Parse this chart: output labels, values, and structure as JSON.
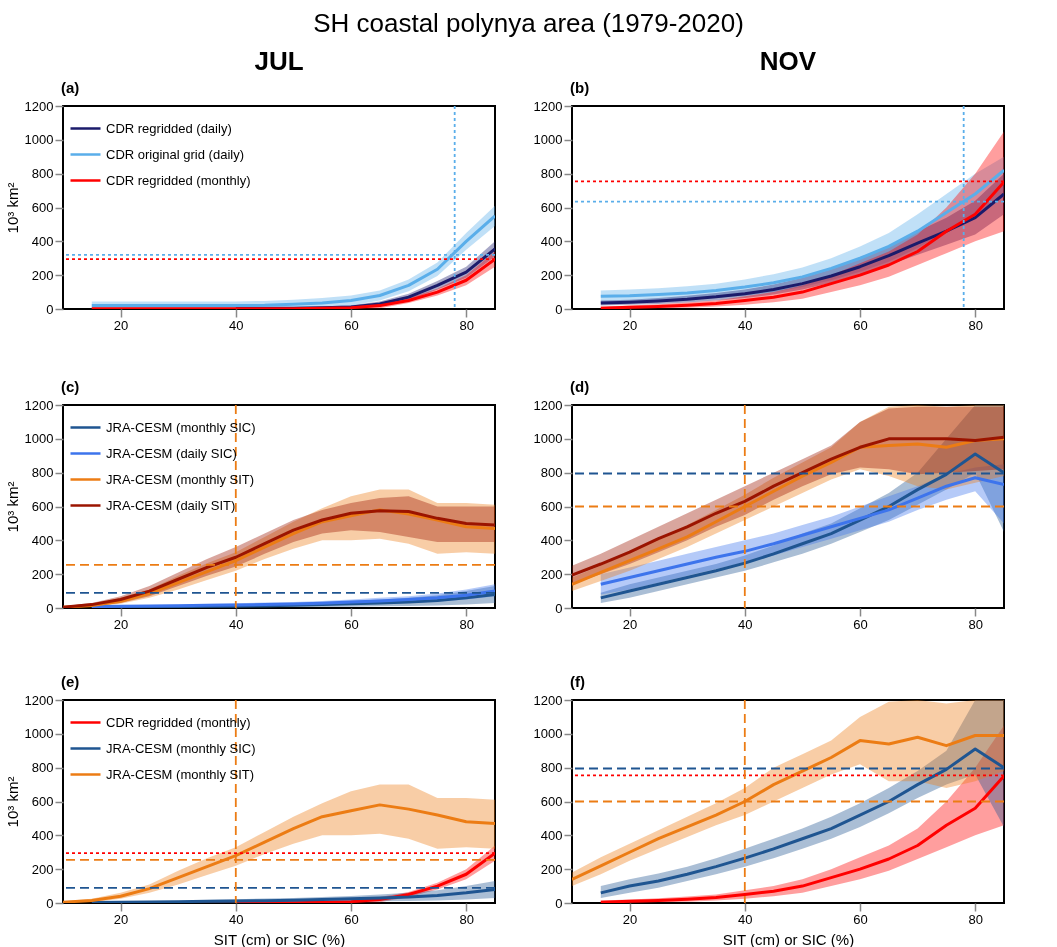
{
  "chart_data": [
    {
      "type": "line",
      "title": "SH coastal polynya area (1979-2020)",
      "subtitle": "JUL",
      "annotations": [
        "(a)"
      ],
      "ylabel": "10³ km²",
      "xlim": [
        10,
        85
      ],
      "xticks": [
        20,
        40,
        60,
        80
      ],
      "ylim": [
        0,
        1200
      ],
      "yticks": [
        0,
        200,
        400,
        600,
        800,
        1000,
        1200
      ],
      "legend": "top left",
      "series": [
        {
          "name": "CDR regridded (daily)",
          "color": "#1b1b6b",
          "x": [
            15,
            20,
            25,
            30,
            35,
            40,
            45,
            50,
            55,
            60,
            65,
            70,
            75,
            80,
            85
          ],
          "values": [
            null,
            null,
            null,
            null,
            null,
            5,
            5,
            5,
            8,
            12,
            30,
            70,
            140,
            218,
            355
          ],
          "lower": [
            0,
            0,
            0,
            0,
            0,
            0,
            0,
            0,
            0,
            0,
            15,
            50,
            115,
            185,
            310
          ],
          "upper": [
            10,
            10,
            10,
            10,
            10,
            10,
            10,
            12,
            15,
            22,
            45,
            90,
            165,
            250,
            400
          ]
        },
        {
          "name": "CDR original grid (daily)",
          "color": "#5aaeea",
          "x": [
            15,
            20,
            25,
            30,
            35,
            40,
            45,
            50,
            55,
            60,
            65,
            70,
            75,
            80,
            85
          ],
          "values": [
            20,
            20,
            20,
            20,
            20,
            20,
            22,
            28,
            35,
            50,
            80,
            140,
            235,
            400,
            550
          ],
          "lower": [
            0,
            0,
            0,
            0,
            0,
            0,
            0,
            0,
            5,
            20,
            50,
            105,
            195,
            350,
            490
          ],
          "upper": [
            45,
            45,
            45,
            45,
            45,
            45,
            48,
            55,
            65,
            80,
            110,
            175,
            275,
            450,
            610
          ]
        },
        {
          "name": "CDR regridded (monthly)",
          "color": "#ff0000",
          "x": [
            15,
            20,
            25,
            30,
            35,
            40,
            45,
            50,
            55,
            60,
            65,
            70,
            75,
            80,
            85
          ],
          "values": [
            2,
            2,
            2,
            2,
            2,
            2,
            2,
            2,
            4,
            8,
            20,
            50,
            100,
            170,
            295
          ],
          "lower": [
            0,
            0,
            0,
            0,
            0,
            0,
            0,
            0,
            0,
            0,
            5,
            35,
            80,
            140,
            250
          ],
          "upper": [
            5,
            5,
            5,
            5,
            5,
            5,
            5,
            6,
            10,
            15,
            35,
            65,
            120,
            200,
            340
          ]
        }
      ],
      "ref_lines": [
        {
          "axis": "y",
          "value": 320,
          "color": "#5aaeea",
          "line_style": "dotted"
        },
        {
          "axis": "y",
          "value": 295,
          "color": "#ff0000",
          "line_style": "dotted"
        },
        {
          "axis": "x",
          "value": 78,
          "color": "#5aaeea",
          "line_style": "dotted"
        }
      ]
    },
    {
      "type": "line",
      "subtitle": "NOV",
      "annotations": [
        "(b)"
      ],
      "xlim": [
        10,
        85
      ],
      "xticks": [
        20,
        40,
        60,
        80
      ],
      "ylim": [
        0,
        1200
      ],
      "yticks": [
        0,
        200,
        400,
        600,
        800,
        1000,
        1200
      ],
      "series": [
        {
          "color": "#5aaeea",
          "x": [
            15,
            20,
            25,
            30,
            35,
            40,
            45,
            50,
            55,
            60,
            65,
            70,
            75,
            80,
            85
          ],
          "values": [
            75,
            78,
            85,
            95,
            110,
            130,
            155,
            190,
            240,
            300,
            370,
            460,
            570,
            680,
            820
          ],
          "lower": [
            40,
            42,
            48,
            55,
            65,
            80,
            100,
            130,
            170,
            220,
            280,
            360,
            460,
            560,
            660
          ],
          "upper": [
            110,
            115,
            122,
            135,
            150,
            175,
            205,
            245,
            300,
            370,
            450,
            560,
            680,
            800,
            900
          ]
        },
        {
          "color": "#1b1b6b",
          "x": [
            15,
            20,
            25,
            30,
            35,
            40,
            45,
            50,
            55,
            60,
            65,
            70,
            75,
            80,
            85
          ],
          "values": [
            35,
            40,
            48,
            58,
            72,
            90,
            115,
            150,
            195,
            250,
            315,
            390,
            460,
            540,
            680
          ],
          "lower": [
            20,
            25,
            30,
            38,
            50,
            65,
            85,
            115,
            155,
            205,
            260,
            320,
            380,
            440,
            560
          ],
          "upper": [
            50,
            55,
            65,
            78,
            95,
            115,
            145,
            185,
            235,
            295,
            370,
            460,
            540,
            640,
            800
          ]
        },
        {
          "color": "#ff0000",
          "x": [
            15,
            20,
            25,
            30,
            35,
            40,
            45,
            50,
            55,
            60,
            65,
            70,
            75,
            80,
            85
          ],
          "values": [
            5,
            10,
            15,
            22,
            32,
            50,
            70,
            100,
            150,
            200,
            260,
            340,
            460,
            560,
            750
          ],
          "lower": [
            0,
            0,
            5,
            8,
            15,
            25,
            40,
            60,
            100,
            140,
            190,
            260,
            330,
            400,
            460
          ],
          "upper": [
            15,
            20,
            28,
            38,
            50,
            75,
            100,
            140,
            200,
            270,
            340,
            440,
            600,
            800,
            1050
          ]
        }
      ],
      "ref_lines": [
        {
          "axis": "y",
          "value": 755,
          "color": "#ff0000",
          "line_style": "dotted"
        },
        {
          "axis": "y",
          "value": 635,
          "color": "#5aaeea",
          "line_style": "dotted"
        },
        {
          "axis": "x",
          "value": 78,
          "color": "#5aaeea",
          "line_style": "dotted"
        }
      ]
    },
    {
      "type": "line",
      "annotations": [
        "(c)"
      ],
      "ylabel": "10³ km²",
      "xlim": [
        10,
        85
      ],
      "xticks": [
        20,
        40,
        60,
        80
      ],
      "ylim": [
        0,
        1200
      ],
      "yticks": [
        0,
        200,
        400,
        600,
        800,
        1000,
        1200
      ],
      "legend": "top left",
      "series": [
        {
          "name": "JRA-CESM (monthly SIC)",
          "color": "#1f5591",
          "x": [
            15,
            20,
            25,
            30,
            35,
            40,
            45,
            50,
            55,
            60,
            65,
            70,
            75,
            80,
            85
          ],
          "values": [
            3,
            5,
            6,
            8,
            10,
            12,
            14,
            16,
            20,
            25,
            30,
            35,
            45,
            60,
            80
          ],
          "lower": [
            0,
            0,
            0,
            0,
            0,
            0,
            2,
            4,
            6,
            8,
            10,
            12,
            15,
            20,
            30
          ],
          "upper": [
            8,
            10,
            12,
            14,
            18,
            22,
            26,
            30,
            36,
            42,
            50,
            60,
            75,
            100,
            130
          ]
        },
        {
          "name": "JRA-CESM (daily SIC)",
          "color": "#3d74ec",
          "x": [
            15,
            20,
            25,
            30,
            35,
            40,
            45,
            50,
            55,
            60,
            65,
            70,
            75,
            80,
            85
          ],
          "values": [
            8,
            10,
            12,
            14,
            16,
            18,
            20,
            24,
            28,
            35,
            42,
            50,
            60,
            75,
            100
          ],
          "lower": [
            3,
            4,
            5,
            6,
            7,
            8,
            10,
            12,
            15,
            20,
            25,
            30,
            38,
            50,
            70
          ],
          "upper": [
            14,
            16,
            18,
            20,
            24,
            28,
            32,
            36,
            42,
            50,
            60,
            70,
            85,
            110,
            140
          ]
        },
        {
          "name": "JRA-CESM (monthly SIT)",
          "color": "#ec7c14",
          "x": [
            10,
            15,
            20,
            25,
            30,
            35,
            40,
            45,
            50,
            55,
            60,
            65,
            70,
            75,
            80,
            85
          ],
          "values": [
            5,
            15,
            40,
            85,
            150,
            215,
            280,
            360,
            440,
            510,
            545,
            580,
            555,
            520,
            480,
            470
          ],
          "lower": [
            0,
            5,
            25,
            60,
            110,
            165,
            220,
            290,
            350,
            400,
            400,
            410,
            380,
            320,
            330,
            320
          ],
          "upper": [
            10,
            25,
            60,
            110,
            190,
            265,
            330,
            420,
            510,
            590,
            660,
            700,
            700,
            620,
            620,
            610
          ]
        },
        {
          "name": "JRA-CESM (daily SIT)",
          "color": "#9b1400",
          "x": [
            10,
            15,
            20,
            25,
            30,
            35,
            40,
            45,
            50,
            55,
            60,
            65,
            70,
            75,
            80,
            85
          ],
          "values": [
            5,
            20,
            50,
            100,
            170,
            240,
            300,
            380,
            460,
            520,
            560,
            575,
            570,
            530,
            500,
            490
          ],
          "lower": [
            0,
            10,
            30,
            70,
            130,
            190,
            245,
            320,
            390,
            440,
            460,
            450,
            420,
            390,
            390,
            390
          ],
          "upper": [
            10,
            30,
            70,
            130,
            210,
            290,
            360,
            440,
            520,
            580,
            620,
            650,
            660,
            600,
            600,
            600
          ]
        }
      ],
      "ref_lines": [
        {
          "axis": "y",
          "value": 255,
          "color": "#ec7c14",
          "line_style": "dashed"
        },
        {
          "axis": "y",
          "value": 90,
          "color": "#1f5591",
          "line_style": "dashed"
        },
        {
          "axis": "x",
          "value": 40,
          "color": "#ec7c14",
          "line_style": "dashed"
        }
      ]
    },
    {
      "type": "line",
      "annotations": [
        "(d)"
      ],
      "xlim": [
        10,
        85
      ],
      "xticks": [
        20,
        40,
        60,
        80
      ],
      "ylim": [
        0,
        1200
      ],
      "yticks": [
        0,
        200,
        400,
        600,
        800,
        1000,
        1200
      ],
      "series": [
        {
          "color": "#1f5591",
          "x": [
            15,
            20,
            25,
            30,
            35,
            40,
            45,
            50,
            55,
            60,
            65,
            70,
            75,
            80,
            85
          ],
          "values": [
            60,
            100,
            140,
            180,
            220,
            265,
            320,
            380,
            440,
            520,
            600,
            700,
            790,
            910,
            800
          ],
          "lower": [
            30,
            60,
            100,
            140,
            180,
            220,
            270,
            320,
            380,
            450,
            520,
            610,
            700,
            800,
            450
          ],
          "upper": [
            90,
            140,
            180,
            220,
            260,
            310,
            370,
            440,
            500,
            590,
            680,
            800,
            1000,
            1200,
            1200
          ]
        },
        {
          "color": "#3d74ec",
          "x": [
            15,
            20,
            25,
            30,
            35,
            40,
            45,
            50,
            55,
            60,
            65,
            70,
            75,
            80,
            85
          ],
          "values": [
            140,
            180,
            220,
            260,
            300,
            335,
            380,
            430,
            480,
            530,
            580,
            650,
            720,
            770,
            730
          ],
          "lower": [
            80,
            110,
            150,
            190,
            230,
            270,
            310,
            360,
            410,
            460,
            510,
            580,
            640,
            690,
            500
          ],
          "upper": [
            200,
            240,
            280,
            320,
            360,
            400,
            440,
            490,
            540,
            600,
            660,
            720,
            790,
            830,
            850
          ]
        },
        {
          "color": "#ec7c14",
          "x": [
            10,
            15,
            20,
            25,
            30,
            35,
            40,
            45,
            50,
            55,
            60,
            65,
            70,
            75,
            80,
            85
          ],
          "values": [
            140,
            210,
            280,
            350,
            420,
            510,
            600,
            690,
            780,
            860,
            950,
            960,
            970,
            950,
            990,
            1000
          ],
          "lower": [
            100,
            160,
            220,
            290,
            360,
            440,
            520,
            600,
            680,
            760,
            820,
            780,
            720,
            700,
            740,
            780
          ],
          "upper": [
            180,
            250,
            330,
            410,
            490,
            580,
            670,
            770,
            860,
            950,
            1100,
            1190,
            1200,
            1190,
            1200,
            1200
          ]
        },
        {
          "color": "#9b1400",
          "x": [
            10,
            15,
            20,
            25,
            30,
            35,
            40,
            45,
            50,
            55,
            60,
            65,
            70,
            75,
            80,
            85
          ],
          "values": [
            195,
            260,
            330,
            410,
            480,
            560,
            630,
            720,
            800,
            880,
            950,
            1000,
            1000,
            1000,
            990,
            1010
          ],
          "lower": [
            140,
            200,
            260,
            330,
            400,
            480,
            550,
            640,
            720,
            790,
            830,
            820,
            790,
            800,
            810,
            820
          ],
          "upper": [
            250,
            320,
            400,
            480,
            560,
            640,
            720,
            800,
            880,
            960,
            1100,
            1180,
            1190,
            1190,
            1190,
            1190
          ]
        }
      ],
      "ref_lines": [
        {
          "axis": "y",
          "value": 795,
          "color": "#1f5591",
          "line_style": "dashed"
        },
        {
          "axis": "y",
          "value": 600,
          "color": "#ec7c14",
          "line_style": "dashed"
        },
        {
          "axis": "x",
          "value": 40,
          "color": "#ec7c14",
          "line_style": "dashed"
        }
      ]
    },
    {
      "type": "line",
      "annotations": [
        "(e)"
      ],
      "xlabel": "SIT (cm) or SIC (%)",
      "ylabel": "10³ km²",
      "xlim": [
        10,
        85
      ],
      "xticks": [
        20,
        40,
        60,
        80
      ],
      "ylim": [
        0,
        1200
      ],
      "yticks": [
        0,
        200,
        400,
        600,
        800,
        1000,
        1200
      ],
      "legend": "top left",
      "series": [
        {
          "name": "CDR regridded (monthly)",
          "color": "#ff0000",
          "x": [
            15,
            20,
            25,
            30,
            35,
            40,
            45,
            50,
            55,
            60,
            65,
            70,
            75,
            80,
            85
          ],
          "values": [
            null,
            null,
            null,
            null,
            null,
            2,
            2,
            2,
            4,
            8,
            20,
            50,
            100,
            170,
            295
          ],
          "lower": [
            0,
            0,
            0,
            0,
            0,
            0,
            0,
            0,
            0,
            0,
            5,
            35,
            80,
            140,
            250
          ],
          "upper": [
            5,
            5,
            5,
            5,
            5,
            5,
            5,
            6,
            10,
            15,
            35,
            65,
            120,
            200,
            340
          ]
        },
        {
          "name": "JRA-CESM (monthly SIC)",
          "color": "#1f5591",
          "x": [
            15,
            20,
            25,
            30,
            35,
            40,
            45,
            50,
            55,
            60,
            65,
            70,
            75,
            80,
            85
          ],
          "values": [
            3,
            5,
            6,
            8,
            10,
            12,
            14,
            16,
            20,
            25,
            30,
            35,
            45,
            60,
            80
          ],
          "lower": [
            0,
            0,
            0,
            0,
            0,
            0,
            2,
            4,
            6,
            8,
            10,
            12,
            15,
            20,
            30
          ],
          "upper": [
            8,
            10,
            12,
            14,
            18,
            22,
            26,
            30,
            36,
            42,
            50,
            60,
            75,
            100,
            130
          ]
        },
        {
          "name": "JRA-CESM (monthly SIT)",
          "color": "#ec7c14",
          "x": [
            10,
            15,
            20,
            25,
            30,
            35,
            40,
            45,
            50,
            55,
            60,
            65,
            70,
            75,
            80,
            85
          ],
          "values": [
            5,
            15,
            40,
            85,
            150,
            215,
            280,
            360,
            440,
            510,
            545,
            580,
            555,
            520,
            480,
            470
          ],
          "lower": [
            0,
            5,
            25,
            60,
            110,
            165,
            220,
            290,
            350,
            400,
            400,
            410,
            380,
            320,
            330,
            320
          ],
          "upper": [
            10,
            25,
            60,
            110,
            190,
            265,
            330,
            420,
            510,
            590,
            660,
            700,
            700,
            620,
            620,
            610
          ]
        }
      ],
      "ref_lines": [
        {
          "axis": "y",
          "value": 295,
          "color": "#ff0000",
          "line_style": "dotted"
        },
        {
          "axis": "y",
          "value": 255,
          "color": "#ec7c14",
          "line_style": "dashed"
        },
        {
          "axis": "y",
          "value": 90,
          "color": "#1f5591",
          "line_style": "dashed"
        },
        {
          "axis": "x",
          "value": 40,
          "color": "#ec7c14",
          "line_style": "dashed"
        }
      ]
    },
    {
      "type": "line",
      "annotations": [
        "(f)"
      ],
      "xlabel": "SIT (cm) or SIC (%)",
      "xlim": [
        10,
        85
      ],
      "xticks": [
        20,
        40,
        60,
        80
      ],
      "ylim": [
        0,
        1200
      ],
      "yticks": [
        0,
        200,
        400,
        600,
        800,
        1000,
        1200
      ],
      "series": [
        {
          "color": "#ff0000",
          "x": [
            15,
            20,
            25,
            30,
            35,
            40,
            45,
            50,
            55,
            60,
            65,
            70,
            75,
            80,
            85
          ],
          "values": [
            5,
            10,
            15,
            22,
            32,
            50,
            70,
            100,
            150,
            200,
            260,
            340,
            460,
            560,
            750
          ],
          "lower": [
            0,
            0,
            5,
            8,
            15,
            25,
            40,
            60,
            100,
            140,
            190,
            260,
            330,
            400,
            460
          ],
          "upper": [
            15,
            20,
            28,
            38,
            50,
            75,
            100,
            140,
            200,
            270,
            340,
            440,
            600,
            800,
            1050
          ]
        },
        {
          "color": "#1f5591",
          "x": [
            15,
            20,
            25,
            30,
            35,
            40,
            45,
            50,
            55,
            60,
            65,
            70,
            75,
            80,
            85
          ],
          "values": [
            60,
            100,
            130,
            170,
            215,
            265,
            320,
            380,
            440,
            520,
            600,
            700,
            790,
            910,
            800
          ],
          "lower": [
            30,
            60,
            90,
            130,
            170,
            215,
            265,
            320,
            380,
            450,
            530,
            620,
            700,
            760,
            450
          ],
          "upper": [
            100,
            140,
            175,
            215,
            265,
            320,
            380,
            440,
            510,
            590,
            680,
            780,
            900,
            1200,
            1200
          ]
        },
        {
          "color": "#ec7c14",
          "x": [
            10,
            15,
            20,
            25,
            30,
            35,
            40,
            45,
            50,
            55,
            60,
            65,
            70,
            75,
            80,
            85
          ],
          "values": [
            140,
            220,
            300,
            380,
            450,
            520,
            600,
            700,
            780,
            860,
            960,
            940,
            980,
            930,
            990,
            990
          ],
          "lower": [
            100,
            170,
            250,
            320,
            390,
            460,
            520,
            600,
            680,
            760,
            820,
            720,
            720,
            680,
            720,
            780
          ],
          "upper": [
            180,
            270,
            350,
            430,
            510,
            590,
            680,
            800,
            880,
            960,
            1100,
            1190,
            1200,
            1180,
            1200,
            1200
          ]
        }
      ],
      "ref_lines": [
        {
          "axis": "y",
          "value": 795,
          "color": "#1f5591",
          "line_style": "dashed"
        },
        {
          "axis": "y",
          "value": 755,
          "color": "#ff0000",
          "line_style": "dotted"
        },
        {
          "axis": "y",
          "value": 600,
          "color": "#ec7c14",
          "line_style": "dashed"
        },
        {
          "axis": "x",
          "value": 40,
          "color": "#ec7c14",
          "line_style": "dashed"
        }
      ]
    }
  ]
}
